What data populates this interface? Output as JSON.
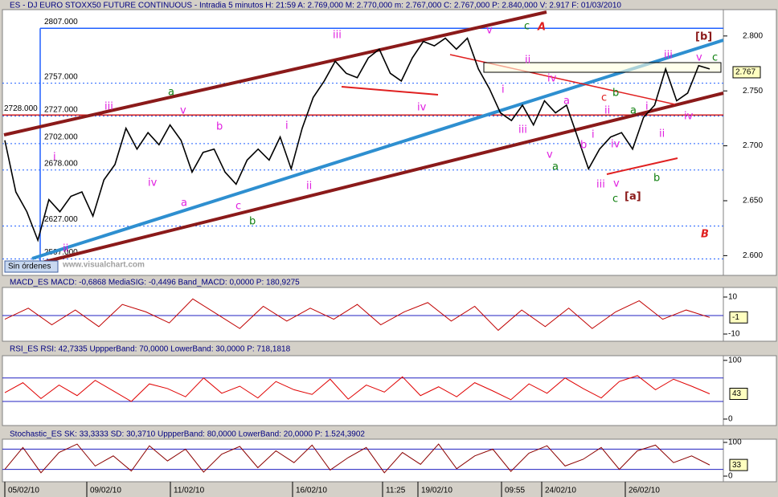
{
  "chart_data": [
    {
      "type": "line",
      "title": "ES - DJ EURO STOXX50 FUTURE CONTINUOUS - Intradia 5 minutos  H: 21:59  A: 2.769,000  M: 2.770,000  m: 2.767,000  C: 2.767,000  P: 2.840,000  V: 2.917  F: 01/03/2010",
      "color": "#000000",
      "values": [
        2705,
        2658,
        2640,
        2614,
        2651,
        2640,
        2654,
        2658,
        2636,
        2669,
        2683,
        2716,
        2697,
        2712,
        2701,
        2719,
        2705,
        2676,
        2694,
        2697,
        2676,
        2665,
        2687,
        2697,
        2687,
        2708,
        2679,
        2716,
        2744,
        2759,
        2777,
        2766,
        2762,
        2780,
        2788,
        2766,
        2759,
        2780,
        2795,
        2791,
        2798,
        2788,
        2798,
        2770,
        2752,
        2730,
        2723,
        2737,
        2719,
        2741,
        2730,
        2737,
        2708,
        2679,
        2697,
        2708,
        2712,
        2697,
        2726,
        2737,
        2770,
        2741,
        2748,
        2773,
        2770
      ],
      "ylim": [
        2582,
        2824
      ],
      "yticks": [
        {
          "value": 2600,
          "label": "2.600"
        },
        {
          "value": 2650,
          "label": "2.650"
        },
        {
          "value": 2700,
          "label": "2.700"
        },
        {
          "value": 2750,
          "label": "2.750"
        },
        {
          "value": 2800,
          "label": "2.800"
        }
      ],
      "last_value": {
        "value": 2767,
        "label": "2.767"
      },
      "levels": [
        {
          "value": 2807,
          "label": "2807.000"
        },
        {
          "value": 2757,
          "label": "2757.000"
        },
        {
          "value": 2727,
          "label": "2727.000"
        },
        {
          "value": 2702,
          "label": "2702.000"
        },
        {
          "value": 2678,
          "label": "2678.000"
        },
        {
          "value": 2728,
          "label": "2728.000"
        },
        {
          "value": 2627,
          "label": "2627.000"
        },
        {
          "value": 2597,
          "label": "2597.000"
        }
      ],
      "xtick_labels": [
        "05/02/10",
        "09/02/10",
        "11/02/10",
        "16/02/10",
        "11:25",
        "19/02/10",
        "09:55",
        "24/02/10",
        "26/02/10"
      ],
      "status": "Sin órdenes",
      "watermark": "www.visualchart.com",
      "annotations": [
        {
          "text": "i",
          "color": "#e020e0"
        },
        {
          "text": "ii",
          "color": "#e020e0"
        },
        {
          "text": "iii",
          "color": "#e020e0"
        },
        {
          "text": "a",
          "color": "#108010"
        },
        {
          "text": "v",
          "color": "#e020e0"
        },
        {
          "text": "iv",
          "color": "#e020e0"
        },
        {
          "text": "a",
          "color": "#e020e0"
        },
        {
          "text": "b",
          "color": "#e020e0"
        },
        {
          "text": "c",
          "color": "#e020e0"
        },
        {
          "text": "b",
          "color": "#108010"
        },
        {
          "text": "i",
          "color": "#e020e0"
        },
        {
          "text": "ii",
          "color": "#e020e0"
        },
        {
          "text": "iii",
          "color": "#e020e0"
        },
        {
          "text": "iv",
          "color": "#e020e0"
        },
        {
          "text": "v",
          "color": "#e020e0"
        },
        {
          "text": "c",
          "color": "#108010"
        },
        {
          "text": "A",
          "color": "#e02020"
        },
        {
          "text": "i",
          "color": "#e020e0"
        },
        {
          "text": "ii",
          "color": "#e020e0"
        },
        {
          "text": "iii",
          "color": "#e020e0"
        },
        {
          "text": "iv",
          "color": "#e020e0"
        },
        {
          "text": "v",
          "color": "#e020e0"
        },
        {
          "text": "a",
          "color": "#108010"
        },
        {
          "text": "a",
          "color": "#e020e0"
        },
        {
          "text": "b",
          "color": "#e020e0"
        },
        {
          "text": "i",
          "color": "#e020e0"
        },
        {
          "text": "ii",
          "color": "#e020e0"
        },
        {
          "text": "c",
          "color": "#e02020"
        },
        {
          "text": "b",
          "color": "#108010"
        },
        {
          "text": "iv",
          "color": "#e020e0"
        },
        {
          "text": "v",
          "color": "#e020e0"
        },
        {
          "text": "iii",
          "color": "#e020e0"
        },
        {
          "text": "c",
          "color": "#108010"
        },
        {
          "text": "[a]",
          "color": "#8b1a1a"
        },
        {
          "text": "a",
          "color": "#108010"
        },
        {
          "text": "b",
          "color": "#108010"
        },
        {
          "text": "i",
          "color": "#e020e0"
        },
        {
          "text": "ii",
          "color": "#e020e0"
        },
        {
          "text": "iii",
          "color": "#e020e0"
        },
        {
          "text": "iv",
          "color": "#e020e0"
        },
        {
          "text": "v",
          "color": "#e020e0"
        },
        {
          "text": "[b]",
          "color": "#8b1a1a"
        },
        {
          "text": "c",
          "color": "#108010"
        },
        {
          "text": "B",
          "color": "#e02020"
        }
      ]
    },
    {
      "type": "line",
      "title": "MACD_ES  MACD: -0,6868  MediaSIG: -0,4496  Band_MACD: 0,0000  P: 180,9275",
      "color": "#c00000",
      "values": [
        -2,
        4,
        -5,
        3,
        -6,
        6,
        2,
        -4,
        9,
        1,
        -7,
        5,
        -3,
        4,
        -2,
        6,
        -5,
        2,
        7,
        -3,
        5,
        -8,
        3,
        -6,
        4,
        -7,
        2,
        8,
        -2,
        3,
        -1
      ],
      "ylim": [
        -13.9,
        15.2
      ],
      "yticks": [
        -10,
        10
      ],
      "bands": [
        0
      ],
      "last_value": -1
    },
    {
      "type": "line",
      "title": "RSI_ES  RSI: 42,7335  UppperBand: 70,0000  LowerBand: 30,0000  P: 718,1818",
      "color": "#e00000",
      "values": [
        45,
        62,
        35,
        58,
        40,
        66,
        48,
        30,
        60,
        52,
        38,
        70,
        44,
        56,
        36,
        64,
        50,
        42,
        68,
        34,
        58,
        46,
        72,
        40,
        55,
        38,
        62,
        48,
        33,
        60,
        44,
        70,
        52,
        36,
        64,
        74,
        50,
        68,
        56,
        43
      ],
      "ylim": [
        -11,
        108
      ],
      "yticks": [
        0,
        100
      ],
      "bands": [
        70,
        30
      ],
      "last_value": 43
    },
    {
      "type": "line",
      "title": "Stochastic_ES  SK: 33,3333  SD: 30,3710  UppperBand: 80,0000  LowerBand: 20,0000  P: 1.524,3902",
      "color": "#8b0000",
      "values": [
        20,
        85,
        10,
        70,
        95,
        30,
        60,
        15,
        90,
        45,
        80,
        12,
        65,
        88,
        25,
        75,
        40,
        92,
        18,
        55,
        85,
        10,
        70,
        35,
        95,
        22,
        60,
        80,
        14,
        68,
        90,
        30,
        50,
        85,
        20,
        75,
        92,
        40,
        60,
        33
      ],
      "ylim": [
        -16.7,
        109.5
      ],
      "yticks": [
        0,
        100
      ],
      "bands": [
        80,
        20
      ],
      "last_value": 33
    }
  ]
}
